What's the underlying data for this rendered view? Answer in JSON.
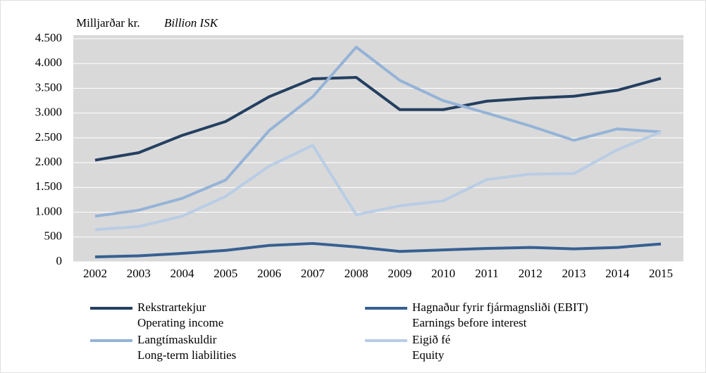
{
  "chart_data": {
    "type": "line",
    "ylabel": "Milljarðar kr.",
    "ylabel_en": "Billion ISK",
    "categories": [
      "2002",
      "2003",
      "2004",
      "2005",
      "2006",
      "2007",
      "2008",
      "2009",
      "2010",
      "2011",
      "2012",
      "2013",
      "2014",
      "2015"
    ],
    "series": [
      {
        "name": "Rekstrartekjur",
        "name_en": "Operating income",
        "color": "#243f60",
        "values": [
          2050,
          2200,
          2550,
          2830,
          3330,
          3690,
          3720,
          3070,
          3070,
          3240,
          3300,
          3340,
          3460,
          3700
        ]
      },
      {
        "name": "Hagnaður fyrir fjármagnsliði (EBIT)",
        "name_en": "Earnings before interest",
        "color": "#376092",
        "values": [
          100,
          120,
          170,
          230,
          330,
          370,
          300,
          210,
          240,
          270,
          290,
          260,
          290,
          360
        ]
      },
      {
        "name": "Langtímaskuldir",
        "name_en": "Long-term liabilities",
        "color": "#95b3d7",
        "values": [
          920,
          1040,
          1280,
          1650,
          2650,
          3330,
          4330,
          3660,
          3250,
          3000,
          2740,
          2450,
          2680,
          2620
        ]
      },
      {
        "name": "Eigið fé",
        "name_en": "Equity",
        "color": "#b9cde5",
        "values": [
          650,
          710,
          920,
          1320,
          1930,
          2350,
          950,
          1130,
          1230,
          1660,
          1770,
          1780,
          2260,
          2620
        ]
      }
    ],
    "ylim": [
      0,
      4500
    ],
    "yticks": [
      0,
      500,
      {
        "value": 1000,
        "label": "1.000"
      },
      {
        "value": 1500,
        "label": "1.500"
      },
      {
        "value": 2000,
        "label": "2.000"
      },
      {
        "value": 2500,
        "label": "2.500"
      },
      {
        "value": 3000,
        "label": "3.000"
      },
      {
        "value": 3500,
        "label": "3.500"
      },
      {
        "value": 4000,
        "label": "4.000"
      },
      {
        "value": 4500,
        "label": "4.500"
      }
    ],
    "grid": true
  }
}
